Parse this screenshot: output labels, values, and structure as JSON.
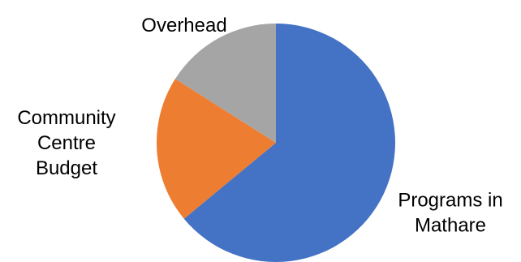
{
  "chart_data": {
    "type": "pie",
    "title": "",
    "start_angle_deg": 0,
    "direction": "clockwise",
    "slices": [
      {
        "label_lines": [
          "Programs in",
          "Mathare"
        ],
        "value": 64,
        "color": "#4472C4"
      },
      {
        "label_lines": [
          "Community",
          "Centre",
          "Budget"
        ],
        "value": 20,
        "color": "#ED7D31"
      },
      {
        "label_lines": [
          "Overhead"
        ],
        "value": 16,
        "color": "#A5A5A5"
      }
    ],
    "legend": "none"
  }
}
